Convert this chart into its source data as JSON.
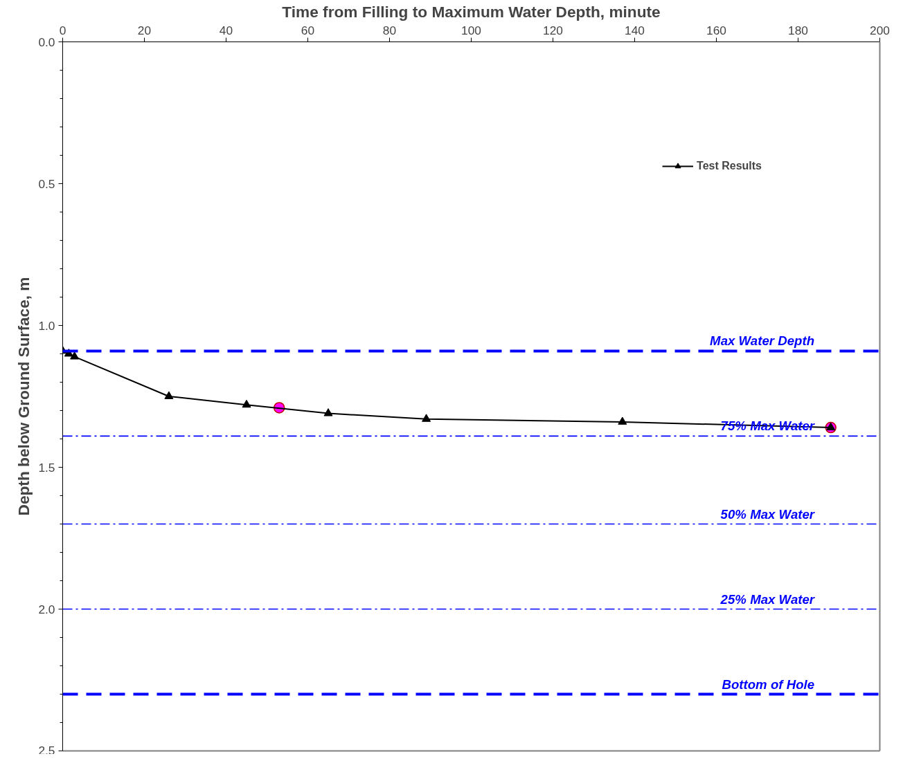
{
  "chart_data": {
    "type": "line",
    "xlabel": "Time from Filling to Maximum Water Depth, minute",
    "ylabel": "Depth below Ground Surface, m",
    "xlim": [
      0,
      200
    ],
    "xticks": [
      0,
      20,
      40,
      60,
      80,
      100,
      120,
      140,
      160,
      180,
      200
    ],
    "ylim": [
      2.5,
      0
    ],
    "yticks": [
      {
        "value": 0,
        "label": "0.0"
      },
      {
        "value": 0.5,
        "label": "0.5"
      },
      {
        "value": 1,
        "label": "1.0"
      },
      {
        "value": 1.5,
        "label": "1.5"
      },
      {
        "value": 2,
        "label": "2.0"
      },
      {
        "value": 2.5,
        "label": "2.5"
      }
    ],
    "grid": false,
    "legend": "top right",
    "series": [
      {
        "name": "Test Results",
        "color": "#000000",
        "marker": "triangle",
        "line_style": "solid",
        "x": [
          0,
          1.5,
          2.9,
          26,
          45,
          65,
          89,
          137,
          188
        ],
        "values": [
          1.09,
          1.1,
          1.11,
          1.25,
          1.28,
          1.31,
          1.33,
          1.34,
          1.36
        ]
      },
      {
        "type": "scatter",
        "color": "#ff00ff",
        "marker": "circle",
        "x": [
          53,
          188
        ],
        "values": [
          1.29,
          1.36
        ]
      }
    ],
    "ref_lines": [
      {
        "axis": "y",
        "value": 1.09,
        "label": "Max Water Depth",
        "color": "#0000ff",
        "line_style": "dashed"
      },
      {
        "axis": "y",
        "value": 1.39,
        "label": "75% Max Water",
        "color": "#0000ff",
        "line_style": "dashdot"
      },
      {
        "axis": "y",
        "value": 1.7,
        "label": "50% Max Water",
        "color": "#0000ff",
        "line_style": "dashdot"
      },
      {
        "axis": "y",
        "value": 2.0,
        "label": "25% Max Water",
        "color": "#0000ff",
        "line_style": "dashdot"
      },
      {
        "axis": "y",
        "value": 2.3,
        "label": "Bottom of Hole",
        "color": "#0000ff",
        "line_style": "dashed"
      }
    ]
  }
}
